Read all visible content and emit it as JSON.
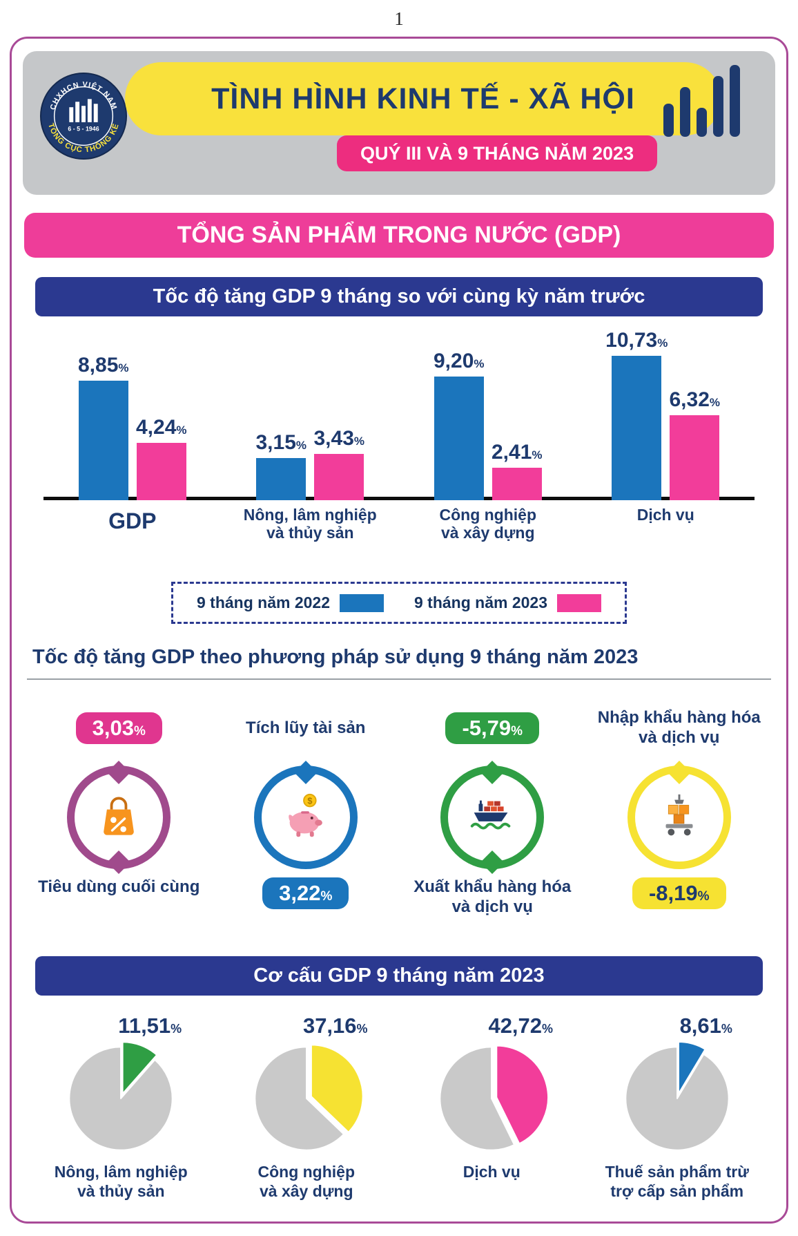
{
  "page_number": "1",
  "header": {
    "logo": {
      "arc_top": "CHXHCN VIỆT NAM",
      "center": "6 - 5 - 1946",
      "arc_bottom": "TỔNG CỤC THỐNG KÊ"
    },
    "title": "TÌNH HÌNH KINH TẾ - XÃ HỘI",
    "subtitle": "QUÝ III VÀ 9 THÁNG NĂM 2023",
    "colors": {
      "header_bg": "#c5c7c9",
      "title_bg": "#f9e13c",
      "subtitle_bg": "#ed2d7f",
      "navy": "#1e3a6e"
    }
  },
  "gdp_banner": "TỔNG SẢN PHẨM TRONG NƯỚC (GDP)",
  "chart_data": [
    {
      "type": "bar",
      "title": "Tốc độ tăng GDP 9 tháng so với cùng kỳ năm trước",
      "unit": "%",
      "ylim": [
        0,
        11
      ],
      "grid": false,
      "legend_position": "bottom",
      "categories": [
        "GDP",
        "Nông, lâm nghiệp\nvà thủy sản",
        "Công nghiệp\nvà xây dựng",
        "Dịch vụ"
      ],
      "series": [
        {
          "name": "9 tháng năm 2022",
          "color": "#1b75bc",
          "values": [
            8.85,
            3.15,
            9.2,
            10.73
          ],
          "labels": [
            "8,85",
            "3,15",
            "9,20",
            "10,73"
          ]
        },
        {
          "name": "9 tháng năm 2023",
          "color": "#f23d9a",
          "values": [
            4.24,
            3.43,
            2.41,
            6.32
          ],
          "labels": [
            "4,24",
            "3,43",
            "2,41",
            "6,32"
          ]
        }
      ]
    },
    {
      "type": "kpi",
      "title": "Tốc độ tăng GDP theo phương pháp sử dụng 9 tháng năm 2023",
      "unit": "%",
      "items": [
        {
          "label": "Tiêu dùng cuối cùng",
          "value": 3.03,
          "display": "3,03",
          "color": "#e0368f",
          "ring_color": "#a04a8c",
          "icon": "shopping-bag-icon",
          "badge_position": "top",
          "badge_text_color": "#ffffff",
          "ring_tips": "both"
        },
        {
          "label": "Tích lũy tài sản",
          "value": 3.22,
          "display": "3,22",
          "color": "#1b75bc",
          "ring_color": "#1b75bc",
          "icon": "piggy-bank-icon",
          "badge_position": "bottom",
          "badge_text_color": "#ffffff",
          "ring_tips": "top"
        },
        {
          "label": "Xuất khẩu hàng hóa\nvà dịch vụ",
          "value": -5.79,
          "display": "-5,79",
          "color": "#2f9e44",
          "ring_color": "#2f9e44",
          "icon": "cargo-ship-icon",
          "badge_position": "top",
          "badge_text_color": "#ffffff",
          "ring_tips": "both"
        },
        {
          "label": "Nhập khẩu hàng hóa\nvà dịch vụ",
          "value": -8.19,
          "display": "-8,19",
          "color": "#f6e232",
          "ring_color": "#f6e232",
          "icon": "goods-trolley-icon",
          "badge_position": "bottom",
          "badge_text_color": "#1e3a6e",
          "ring_tips": "top"
        }
      ]
    },
    {
      "type": "pie",
      "title": "Cơ cấu GDP 9 tháng năm 2023",
      "unit": "%",
      "base_color": "#c9c9c9",
      "slices": [
        {
          "label": "Nông, lâm nghiệp\nvà thủy sản",
          "value": 11.51,
          "display": "11,51",
          "color": "#2f9e44"
        },
        {
          "label": "Công nghiệp\nvà xây dựng",
          "value": 37.16,
          "display": "37,16",
          "color": "#f6e232"
        },
        {
          "label": "Dịch vụ",
          "value": 42.72,
          "display": "42,72",
          "color": "#f23d9a"
        },
        {
          "label": "Thuế sản phẩm trừ\ntrợ cấp sản phẩm",
          "value": 8.61,
          "display": "8,61",
          "color": "#1b75bc"
        }
      ]
    }
  ]
}
